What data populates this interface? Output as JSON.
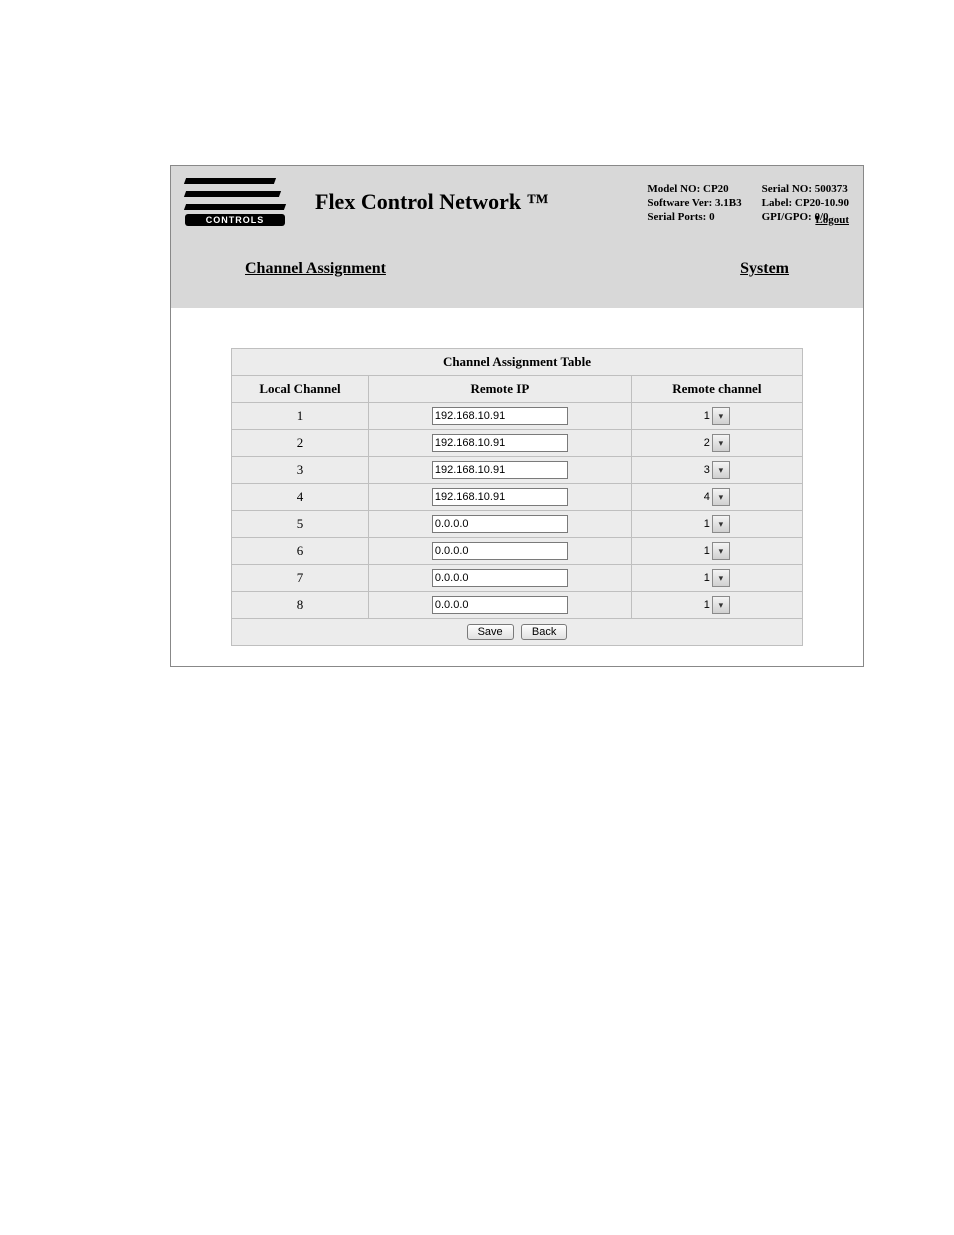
{
  "logo": {
    "subtext": "CONTROLS"
  },
  "product_title": "Flex Control Network ™",
  "info": {
    "model_label": "Model NO:",
    "model_value": "CP20",
    "serial_label": "Serial NO:",
    "serial_value": "500373",
    "software_label": "Software Ver:",
    "software_value": "3.1B3",
    "label_label": "Label:",
    "label_value": "CP20-10.90",
    "ports_label": "Serial Ports:",
    "ports_value": "0",
    "gpio_label": "GPI/GPO:",
    "gpio_value": "0/0"
  },
  "logout_label": "Logout",
  "nav": {
    "channel_assignment": "Channel Assignment",
    "system": "System"
  },
  "table": {
    "title": "Channel Assignment Table",
    "columns": {
      "local": "Local Channel",
      "remote_ip": "Remote IP",
      "remote_channel": "Remote channel"
    },
    "rows": [
      {
        "local": "1",
        "ip": "192.168.10.91",
        "remote": "1"
      },
      {
        "local": "2",
        "ip": "192.168.10.91",
        "remote": "2"
      },
      {
        "local": "3",
        "ip": "192.168.10.91",
        "remote": "3"
      },
      {
        "local": "4",
        "ip": "192.168.10.91",
        "remote": "4"
      },
      {
        "local": "5",
        "ip": "0.0.0.0",
        "remote": "1"
      },
      {
        "local": "6",
        "ip": "0.0.0.0",
        "remote": "1"
      },
      {
        "local": "7",
        "ip": "0.0.0.0",
        "remote": "1"
      },
      {
        "local": "8",
        "ip": "0.0.0.0",
        "remote": "1"
      }
    ],
    "buttons": {
      "save": "Save",
      "back": "Back"
    }
  },
  "colors": {
    "header_bg": "#d8d8d8",
    "cell_bg": "#ececec",
    "border": "#bfbfbf"
  }
}
